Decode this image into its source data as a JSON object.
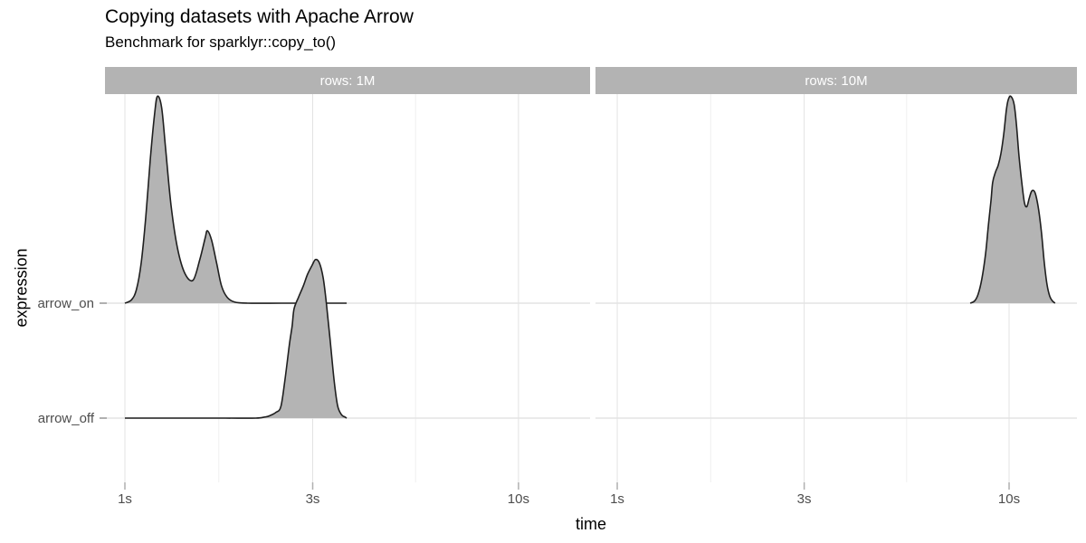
{
  "title": "Copying datasets with Apache Arrow",
  "subtitle": "Benchmark for sparklyr::copy_to()",
  "chart_data": {
    "type": "area",
    "subtype": "faceted-density-ridgeline",
    "title": "Copying datasets with Apache Arrow",
    "subtitle": "Benchmark for sparklyr::copy_to()",
    "x_axis": {
      "label": "time",
      "scale": "log10",
      "unit": "seconds",
      "major_breaks": [
        1,
        3,
        10
      ],
      "major_labels": [
        "1s",
        "3s",
        "10s"
      ],
      "minor_breaks": [
        1.7320508,
        5.4772256
      ]
    },
    "y_axis": {
      "label": "expression",
      "categories_top_to_bottom": [
        "arrow_on",
        "arrow_off"
      ],
      "tick_labels": [
        "arrow_on",
        "arrow_off"
      ]
    },
    "legend": "none",
    "grid": true,
    "facets": [
      {
        "label": "rows: 1M",
        "xlim": [
          0.89,
          15.2
        ],
        "series": [
          {
            "name": "arrow_on",
            "row": "arrow_on",
            "points": [
              [
                1.0,
                0
              ],
              [
                1.04,
                0.03
              ],
              [
                1.07,
                0.12
              ],
              [
                1.1,
                0.35
              ],
              [
                1.13,
                0.75
              ],
              [
                1.16,
                1.25
              ],
              [
                1.19,
                1.65
              ],
              [
                1.21,
                1.8
              ],
              [
                1.24,
                1.7
              ],
              [
                1.27,
                1.33
              ],
              [
                1.31,
                0.85
              ],
              [
                1.36,
                0.48
              ],
              [
                1.42,
                0.26
              ],
              [
                1.49,
                0.2
              ],
              [
                1.55,
                0.38
              ],
              [
                1.6,
                0.57
              ],
              [
                1.62,
                0.63
              ],
              [
                1.66,
                0.55
              ],
              [
                1.71,
                0.35
              ],
              [
                1.76,
                0.15
              ],
              [
                1.82,
                0.05
              ],
              [
                1.9,
                0.01
              ],
              [
                2.05,
                0
              ],
              [
                2.5,
                0
              ],
              [
                3.0,
                0
              ],
              [
                3.4,
                0
              ],
              [
                3.66,
                0
              ]
            ]
          },
          {
            "name": "arrow_off",
            "row": "arrow_off",
            "points": [
              [
                1.0,
                0
              ],
              [
                1.4,
                0
              ],
              [
                1.8,
                0
              ],
              [
                2.15,
                0
              ],
              [
                2.27,
                0.01
              ],
              [
                2.33,
                0.02
              ],
              [
                2.42,
                0.05
              ],
              [
                2.49,
                0.1
              ],
              [
                2.55,
                0.33
              ],
              [
                2.62,
                0.65
              ],
              [
                2.66,
                0.8
              ],
              [
                2.69,
                0.95
              ],
              [
                2.76,
                1.05
              ],
              [
                2.84,
                1.15
              ],
              [
                2.91,
                1.25
              ],
              [
                2.99,
                1.33
              ],
              [
                3.05,
                1.38
              ],
              [
                3.12,
                1.35
              ],
              [
                3.19,
                1.22
              ],
              [
                3.25,
                1.0
              ],
              [
                3.32,
                0.69
              ],
              [
                3.4,
                0.33
              ],
              [
                3.47,
                0.11
              ],
              [
                3.55,
                0.03
              ],
              [
                3.62,
                0.01
              ],
              [
                3.66,
                0
              ]
            ]
          }
        ]
      },
      {
        "label": "rows: 10M",
        "xlim": [
          0.88,
          14.9
        ],
        "series": [
          {
            "name": "arrow_on",
            "row": "arrow_on",
            "points": [
              [
                7.96,
                0
              ],
              [
                8.17,
                0.02
              ],
              [
                8.34,
                0.08
              ],
              [
                8.52,
                0.21
              ],
              [
                8.71,
                0.43
              ],
              [
                8.85,
                0.67
              ],
              [
                8.99,
                0.89
              ],
              [
                9.08,
                1.05
              ],
              [
                9.23,
                1.14
              ],
              [
                9.38,
                1.2
              ],
              [
                9.53,
                1.3
              ],
              [
                9.69,
                1.47
              ],
              [
                9.84,
                1.68
              ],
              [
                9.95,
                1.77
              ],
              [
                10.1,
                1.8
              ],
              [
                10.3,
                1.73
              ],
              [
                10.45,
                1.54
              ],
              [
                10.6,
                1.28
              ],
              [
                10.8,
                1.02
              ],
              [
                10.95,
                0.87
              ],
              [
                11.1,
                0.84
              ],
              [
                11.25,
                0.91
              ],
              [
                11.4,
                0.97
              ],
              [
                11.55,
                0.98
              ],
              [
                11.7,
                0.94
              ],
              [
                11.9,
                0.81
              ],
              [
                12.1,
                0.61
              ],
              [
                12.3,
                0.35
              ],
              [
                12.5,
                0.16
              ],
              [
                12.7,
                0.06
              ],
              [
                12.9,
                0.02
              ],
              [
                13.1,
                0
              ]
            ]
          }
        ]
      }
    ],
    "style": {
      "density_fill": "#b4b4b4",
      "density_stroke": "#1f1f1f",
      "grid_major": "#e3e3e3",
      "grid_minor": "#f0f0f0",
      "tick_color": "#b0b0b0",
      "axis_text_color": "#4d4d4d",
      "strip_bg": "#b3b3b3",
      "strip_text": "#ffffff",
      "background": "#ffffff"
    }
  }
}
